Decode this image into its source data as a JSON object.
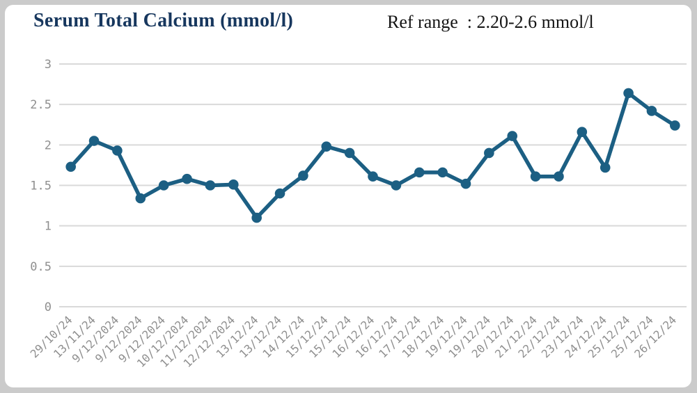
{
  "header": {
    "title": "Serum Total Calcium (mmol/l)",
    "ref_range": "Ref range  : 2.20-2.6 mmol/l"
  },
  "colors": {
    "frame": "#cbcbcb",
    "card_bg": "#ffffff",
    "title_text": "#17375e",
    "ref_text": "#141414",
    "line": "#1c5f83",
    "marker": "#1c5f83",
    "grid": "#d9d9d9",
    "axis_text": "#8f8f8f"
  },
  "chart_data": {
    "type": "line",
    "title": "Serum Total Calcium (mmol/l)",
    "series_name": "Serum Total Calcium (mmol/l)",
    "x": [
      "29/10/24",
      "13/11/24",
      "9/12/2024",
      "9/12/2024",
      "9/12/2024",
      "10/12/2024",
      "11/12/2024",
      "12/12/2024",
      "13/12/24",
      "13/12/24",
      "14/12/24",
      "15/12/24",
      "15/12/24",
      "16/12/24",
      "16/12/24",
      "17/12/24",
      "18/12/24",
      "19/12/24",
      "19/12/24",
      "20/12/24",
      "21/12/24",
      "22/12/24",
      "23/12/24",
      "24/12/24",
      "25/12/24",
      "25/12/24",
      "26/12/24"
    ],
    "values": [
      1.73,
      2.05,
      1.93,
      1.34,
      1.5,
      1.58,
      1.5,
      1.51,
      1.1,
      1.4,
      1.62,
      1.98,
      1.9,
      1.61,
      1.5,
      1.66,
      1.66,
      1.52,
      1.9,
      2.11,
      1.61,
      1.61,
      2.16,
      1.72,
      2.64,
      2.42,
      2.24
    ],
    "xlabel": "",
    "ylabel": "",
    "ylim": [
      0,
      3
    ],
    "yticks": [
      "0",
      "0.5",
      "1",
      "1.5",
      "2",
      "2.5",
      "3"
    ],
    "grid": true,
    "legend": false,
    "marker": "circle",
    "annotation": "Ref range  : 2.20-2.6 mmol/l"
  }
}
